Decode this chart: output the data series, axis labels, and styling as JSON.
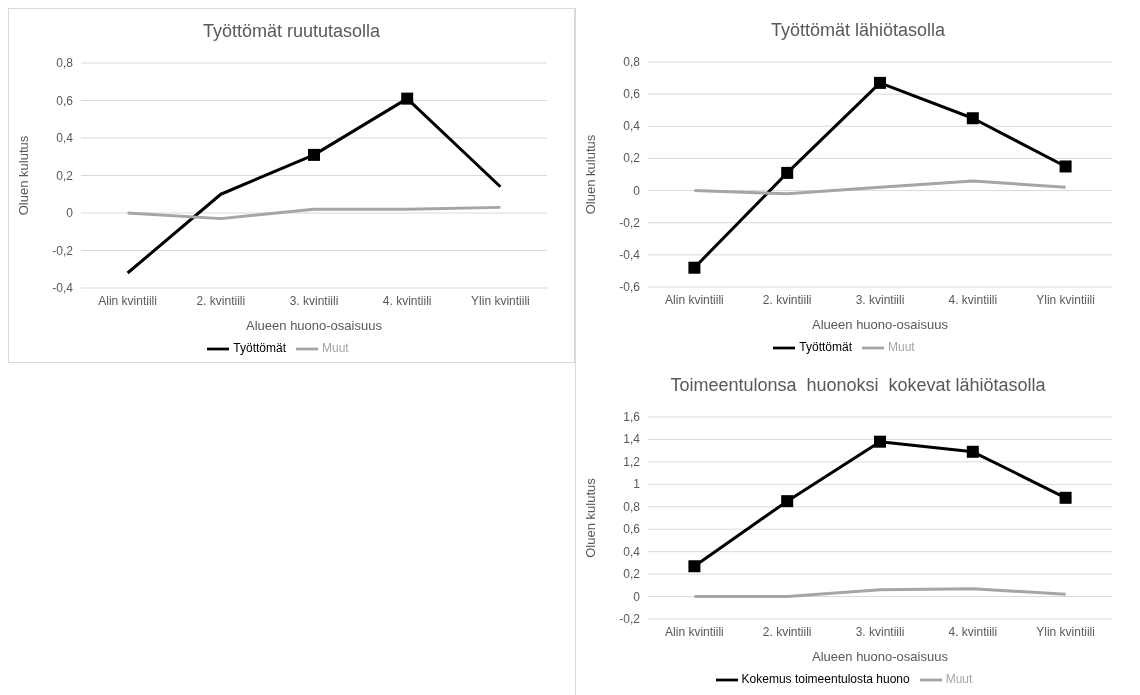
{
  "chart_data": [
    {
      "type": "line",
      "title": "Työttömät ruututasolla",
      "xlabel": "Alueen huono-osaisuus",
      "ylabel": "Oluen kulutus",
      "categories": [
        "Alin kvintiili",
        "2. kvintiili",
        "3. kvintiili",
        "4. kvintiili",
        "Ylin kvintiili"
      ],
      "ylim": [
        -0.4,
        0.8
      ],
      "yticks": [
        {
          "value": -0.4,
          "label": "-0,4"
        },
        {
          "value": -0.2,
          "label": "-0,2"
        },
        {
          "value": 0,
          "label": "0"
        },
        {
          "value": 0.2,
          "label": "0,2"
        },
        {
          "value": 0.4,
          "label": "0,4"
        },
        {
          "value": 0.6,
          "label": "0,6"
        },
        {
          "value": 0.8,
          "label": "0,8"
        }
      ],
      "grid": "y",
      "legend": "bottom",
      "series": [
        {
          "name": "Työttömät",
          "color": "#000000",
          "marker": "none",
          "values": [
            -0.32,
            0.1,
            0.31,
            0.61,
            0.14
          ]
        },
        {
          "name": "Muut",
          "color": "#a5a5a5",
          "marker": "none",
          "values": [
            0,
            -0.03,
            0.02,
            0.02,
            0.03
          ]
        },
        {
          "type": "scatter",
          "color": "#000000",
          "marker": "square",
          "values": [
            null,
            null,
            0.31,
            0.61,
            null
          ]
        }
      ]
    },
    {
      "type": "line",
      "title": "Työttömät lähiötasolla",
      "xlabel": "Alueen huono-osaisuus",
      "ylabel": "Oluen kulutus",
      "categories": [
        "Alin kvintiili",
        "2. kvintiili",
        "3. kvintiili",
        "4. kvintiili",
        "Ylin kvintiili"
      ],
      "ylim": [
        -0.6,
        0.8
      ],
      "yticks": [
        {
          "value": -0.6,
          "label": "-0,6"
        },
        {
          "value": -0.4,
          "label": "-0,4"
        },
        {
          "value": -0.2,
          "label": "-0,2"
        },
        {
          "value": 0,
          "label": "0"
        },
        {
          "value": 0.2,
          "label": "0,2"
        },
        {
          "value": 0.4,
          "label": "0,4"
        },
        {
          "value": 0.6,
          "label": "0,6"
        },
        {
          "value": 0.8,
          "label": "0,8"
        }
      ],
      "grid": "y",
      "legend": "bottom",
      "series": [
        {
          "name": "Työttömät",
          "color": "#000000",
          "marker": "square",
          "values": [
            -0.48,
            0.11,
            0.67,
            0.45,
            0.15
          ]
        },
        {
          "name": "Muut",
          "color": "#a5a5a5",
          "marker": "none",
          "values": [
            0,
            -0.02,
            0.02,
            0.06,
            0.02
          ]
        }
      ]
    },
    {
      "type": "line",
      "title": "Toimeentulonsa  huonoksi  kokevat lähiötasolla",
      "xlabel": "Alueen huono-osaisuus",
      "ylabel": "Oluen kulutus",
      "categories": [
        "Alin kvintiili",
        "2. kvintiili",
        "3. kvintiili",
        "4. kvintiili",
        "Ylin kvintiili"
      ],
      "ylim": [
        -0.2,
        1.6
      ],
      "yticks": [
        {
          "value": -0.2,
          "label": "-0,2"
        },
        {
          "value": 0,
          "label": "0"
        },
        {
          "value": 0.2,
          "label": "0,2"
        },
        {
          "value": 0.4,
          "label": "0,4"
        },
        {
          "value": 0.6,
          "label": "0,6"
        },
        {
          "value": 0.8,
          "label": "0,8"
        },
        {
          "value": 1,
          "label": "1"
        },
        {
          "value": 1.2,
          "label": "1,2"
        },
        {
          "value": 1.4,
          "label": "1,4"
        },
        {
          "value": 1.6,
          "label": "1,6"
        }
      ],
      "grid": "y",
      "legend": "bottom",
      "series": [
        {
          "name": "Kokemus toimeentulosta huono",
          "color": "#000000",
          "marker": "square",
          "values": [
            0.27,
            0.85,
            1.38,
            1.29,
            0.88
          ]
        },
        {
          "name": "Muut",
          "color": "#a5a5a5",
          "marker": "none",
          "values": [
            0,
            0,
            0.06,
            0.07,
            0.02
          ]
        }
      ]
    }
  ]
}
